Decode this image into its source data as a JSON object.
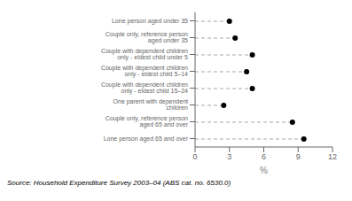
{
  "chart_data": {
    "type": "lollipop",
    "orientation": "horizontal",
    "categories": [
      "Lone person aged under 35",
      "Couple only, reference person aged under 35",
      "Couple with dependent children only - eldest child under 5",
      "Couple with dependent children only - eldest child 5–14",
      "Couple with dependent children only - eldest child 15–24",
      "One parent with dependent children",
      "Couple only, reference person aged 65 and over",
      "Lone person aged 65 and over"
    ],
    "values": [
      3.0,
      3.5,
      5.0,
      4.5,
      5.0,
      2.5,
      8.5,
      9.5
    ],
    "xlabel": "%",
    "xlim": [
      0,
      12
    ],
    "xticks": [
      0,
      3,
      6,
      9,
      12
    ],
    "color": "#000000",
    "marker": "circle",
    "line_style": "dashed",
    "grid": false,
    "annotations": [
      "Source: Household Expenditure Survey 2003–04 (ABS cat. no. 6530.0)"
    ]
  }
}
